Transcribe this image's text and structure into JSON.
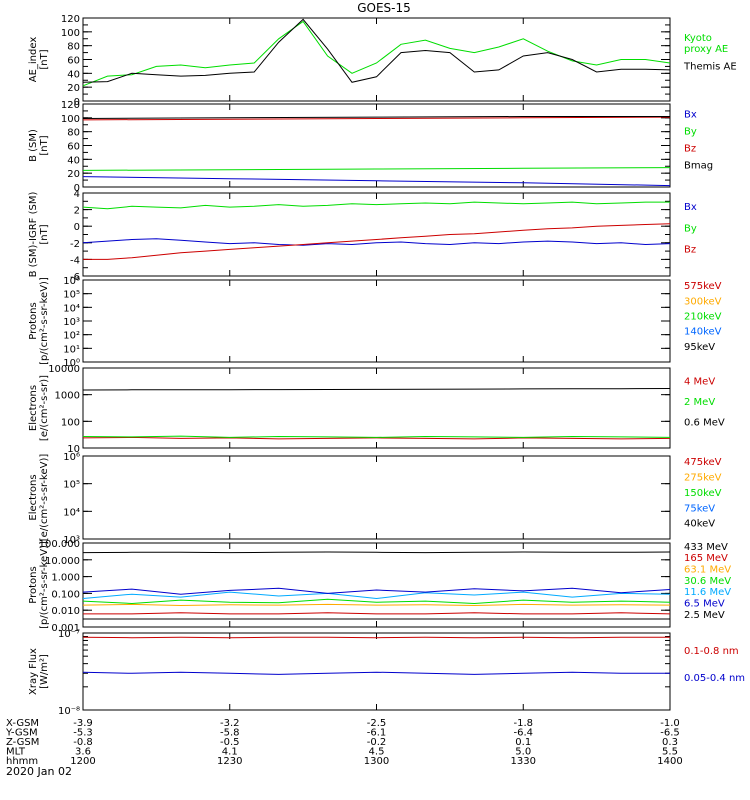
{
  "title": "GOES-15",
  "date": "2020 Jan 02",
  "chart_data": [
    {
      "type": "line",
      "id": "ae",
      "ylabel": [
        "AE_index",
        "[nT]"
      ],
      "ylim": [
        0,
        120
      ],
      "yscale": "linear",
      "ticks": [
        0,
        10,
        20,
        30,
        40,
        50,
        60,
        70,
        80,
        90,
        100,
        110,
        120
      ],
      "tick_labels": [
        "0",
        "20",
        "40",
        "60",
        "80",
        "100",
        "120"
      ],
      "tick_label_values": [
        0,
        20,
        40,
        60,
        80,
        100,
        120
      ],
      "x": [
        0,
        5,
        10,
        15,
        20,
        25,
        30,
        35,
        40,
        45,
        50,
        55,
        60,
        65,
        70,
        75,
        80,
        85,
        90,
        95,
        100,
        105,
        110,
        115,
        120
      ],
      "series": [
        {
          "name": "Kyoto proxy AE",
          "label_lines": [
            "Kyoto",
            "proxy AE"
          ],
          "color": "#00dd00",
          "values": [
            22,
            36,
            38,
            50,
            52,
            48,
            52,
            55,
            90,
            115,
            65,
            40,
            55,
            82,
            88,
            76,
            70,
            78,
            90,
            72,
            58,
            52,
            60,
            60,
            55
          ]
        },
        {
          "name": "Themis AE",
          "label_lines": [
            "Themis AE"
          ],
          "color": "#000000",
          "values": [
            27,
            28,
            40,
            38,
            36,
            37,
            40,
            42,
            85,
            118,
            75,
            27,
            35,
            70,
            73,
            70,
            42,
            45,
            65,
            70,
            60,
            42,
            46,
            46,
            45
          ]
        }
      ]
    },
    {
      "type": "line",
      "id": "bsm",
      "ylabel": [
        "B (SM)",
        "[nT]"
      ],
      "ylim": [
        0,
        120
      ],
      "yscale": "linear",
      "ticks": [
        0,
        10,
        20,
        30,
        40,
        50,
        60,
        70,
        80,
        90,
        100,
        110,
        120
      ],
      "tick_labels": [
        "0",
        "20",
        "40",
        "60",
        "80",
        "100",
        "120"
      ],
      "tick_label_values": [
        0,
        20,
        40,
        60,
        80,
        100,
        120
      ],
      "x": [
        0,
        30,
        60,
        90,
        120
      ],
      "series": [
        {
          "name": "Bx",
          "color": "#0000cc",
          "values": [
            15,
            12,
            9,
            6,
            2
          ]
        },
        {
          "name": "By",
          "color": "#00dd00",
          "values": [
            24,
            25,
            26,
            27,
            28
          ]
        },
        {
          "name": "Bz",
          "color": "#cc0000",
          "values": [
            97,
            98,
            99,
            100,
            101
          ]
        },
        {
          "name": "Bmag",
          "color": "#000000",
          "values": [
            99,
            100,
            101,
            102,
            102
          ]
        }
      ]
    },
    {
      "type": "line",
      "id": "bigrf",
      "ylabel": [
        "B (SM)-IGRF (SM)",
        "[nT]"
      ],
      "ylim": [
        -6,
        4
      ],
      "yscale": "linear",
      "ticks": [
        -6,
        -5,
        -4,
        -3,
        -2,
        -1,
        0,
        1,
        2,
        3,
        4
      ],
      "tick_labels": [
        "-6",
        "-4",
        "-2",
        "0",
        "2",
        "4"
      ],
      "tick_label_values": [
        -6,
        -4,
        -2,
        0,
        2,
        4
      ],
      "x": [
        0,
        5,
        10,
        15,
        20,
        25,
        30,
        35,
        40,
        45,
        50,
        55,
        60,
        65,
        70,
        75,
        80,
        85,
        90,
        95,
        100,
        105,
        110,
        115,
        120
      ],
      "series": [
        {
          "name": "Bx",
          "color": "#0000cc",
          "values": [
            -2.0,
            -1.8,
            -1.6,
            -1.5,
            -1.7,
            -1.9,
            -2.1,
            -2.0,
            -2.2,
            -2.3,
            -2.1,
            -2.2,
            -2.0,
            -1.9,
            -2.1,
            -2.2,
            -2.0,
            -2.1,
            -1.9,
            -1.8,
            -1.9,
            -2.1,
            -2.0,
            -2.2,
            -2.1
          ]
        },
        {
          "name": "By",
          "color": "#00dd00",
          "values": [
            2.3,
            2.1,
            2.4,
            2.3,
            2.2,
            2.5,
            2.3,
            2.4,
            2.6,
            2.4,
            2.5,
            2.7,
            2.6,
            2.7,
            2.8,
            2.7,
            2.9,
            2.8,
            2.7,
            2.8,
            2.9,
            2.7,
            2.8,
            2.9,
            2.9
          ]
        },
        {
          "name": "Bz",
          "color": "#cc0000",
          "values": [
            -4.0,
            -4.0,
            -3.8,
            -3.5,
            -3.2,
            -3.0,
            -2.8,
            -2.6,
            -2.4,
            -2.2,
            -2.0,
            -1.8,
            -1.6,
            -1.4,
            -1.2,
            -1.0,
            -0.9,
            -0.7,
            -0.5,
            -0.3,
            -0.2,
            0.0,
            0.1,
            0.2,
            0.3
          ]
        }
      ]
    },
    {
      "type": "line",
      "id": "protons-epead",
      "ylabel": [
        "Protons",
        "[p/(cm²-s-sr-keV)]"
      ],
      "ylim": [
        1,
        1000000
      ],
      "yscale": "log",
      "ticks": [
        1,
        10,
        100,
        1000,
        10000,
        100000,
        1000000
      ],
      "tick_labels": [
        "10⁰",
        "10¹",
        "10²",
        "10³",
        "10⁴",
        "10⁵",
        "10⁶"
      ],
      "tick_label_values": [
        1,
        10,
        100,
        1000,
        10000,
        100000,
        1000000
      ],
      "series": [
        {
          "name": "575keV",
          "color": "#cc0000",
          "values": []
        },
        {
          "name": "300keV",
          "color": "#ffaa00",
          "values": []
        },
        {
          "name": "210keV",
          "color": "#00dd00",
          "values": []
        },
        {
          "name": "140keV",
          "color": "#0066ff",
          "values": []
        },
        {
          "name": "95keV",
          "color": "#000000",
          "values": []
        }
      ]
    },
    {
      "type": "line",
      "id": "electrons-mev",
      "ylabel": [
        "Electrons",
        "[e/(cm²-s-sr)]"
      ],
      "ylim": [
        10,
        10000
      ],
      "yscale": "log",
      "ticks": [
        10,
        100,
        1000,
        10000
      ],
      "tick_labels": [
        "10",
        "100",
        "1000",
        "10000"
      ],
      "tick_label_values": [
        10,
        100,
        1000,
        10000
      ],
      "x": [
        0,
        10,
        20,
        30,
        40,
        50,
        60,
        70,
        80,
        90,
        100,
        110,
        120
      ],
      "series": [
        {
          "name": "4 MeV",
          "color": "#cc0000",
          "values": [
            24,
            25,
            23,
            24,
            22,
            23,
            24,
            23,
            22,
            24,
            23,
            22,
            23
          ]
        },
        {
          "name": "2 MeV",
          "color": "#00dd00",
          "values": [
            27,
            26,
            28,
            25,
            27,
            26,
            25,
            27,
            26,
            25,
            27,
            26,
            25
          ]
        },
        {
          "name": "0.6 MeV",
          "color": "#000000",
          "values": [
            1500,
            1520,
            1540,
            1530,
            1550,
            1560,
            1580,
            1600,
            1620,
            1640,
            1660,
            1680,
            1700
          ]
        }
      ]
    },
    {
      "type": "line",
      "id": "electrons-kev",
      "ylabel": [
        "Electrons",
        "[e/(cm²-s-sr-keV)]"
      ],
      "ylim": [
        1000,
        1000000
      ],
      "yscale": "log",
      "ticks": [
        1000,
        10000,
        100000,
        1000000
      ],
      "tick_labels": [
        "10³",
        "10⁴",
        "10⁵",
        "10⁶"
      ],
      "tick_label_values": [
        1000,
        10000,
        100000,
        1000000
      ],
      "series": [
        {
          "name": "475keV",
          "color": "#cc0000",
          "values": []
        },
        {
          "name": "275keV",
          "color": "#ffaa00",
          "values": []
        },
        {
          "name": "150keV",
          "color": "#00dd00",
          "values": []
        },
        {
          "name": "75keV",
          "color": "#0066ff",
          "values": []
        },
        {
          "name": "40keV",
          "color": "#000000",
          "values": []
        }
      ]
    },
    {
      "type": "line",
      "id": "protons-mev",
      "ylabel": [
        "Protons",
        "[p/(cm²-s-sr-keV)]"
      ],
      "ylim": [
        0.001,
        100
      ],
      "yscale": "log",
      "ticks": [
        0.001,
        0.01,
        0.1,
        1,
        10,
        100
      ],
      "tick_labels": [
        "0.001",
        "0.010",
        "0.100",
        "1.000",
        "10.000",
        "100.000"
      ],
      "tick_label_values": [
        0.001,
        0.01,
        0.1,
        1,
        10,
        100
      ],
      "x": [
        0,
        10,
        20,
        30,
        40,
        50,
        60,
        70,
        80,
        90,
        100,
        110,
        120
      ],
      "series": [
        {
          "name": "433 MeV",
          "color": "#000000",
          "values": [
            27,
            28,
            28,
            27,
            28,
            29,
            28,
            27,
            28,
            29,
            28,
            28,
            29
          ]
        },
        {
          "name": "165 MeV",
          "color": "#cc0000",
          "values": [
            0.006,
            0.006,
            0.007,
            0.006,
            0.006,
            0.007,
            0.006,
            0.006,
            0.007,
            0.006,
            0.006,
            0.007,
            0.006
          ]
        },
        {
          "name": "63.1 MeV",
          "color": "#ffaa00",
          "values": [
            0.02,
            0.022,
            0.019,
            0.021,
            0.02,
            0.022,
            0.02,
            0.021,
            0.019,
            0.022,
            0.02,
            0.021,
            0.02
          ]
        },
        {
          "name": "30.6 MeV",
          "color": "#00dd00",
          "values": [
            0.035,
            0.025,
            0.04,
            0.03,
            0.028,
            0.045,
            0.03,
            0.035,
            0.025,
            0.04,
            0.03,
            0.035,
            0.03
          ]
        },
        {
          "name": "11.6 MeV",
          "color": "#00aaff",
          "values": [
            0.05,
            0.09,
            0.06,
            0.12,
            0.07,
            0.1,
            0.05,
            0.11,
            0.08,
            0.12,
            0.06,
            0.1,
            0.09
          ]
        },
        {
          "name": "6.5 MeV",
          "color": "#0000cc",
          "values": [
            0.12,
            0.18,
            0.09,
            0.15,
            0.2,
            0.1,
            0.16,
            0.12,
            0.19,
            0.14,
            0.2,
            0.11,
            0.17
          ]
        },
        {
          "name": "2.5 MeV",
          "color": "#000000",
          "values": [
            0.003,
            0.003,
            0.003,
            0.003,
            0.003,
            0.003,
            0.003,
            0.003,
            0.003,
            0.003,
            0.003,
            0.003,
            0.003
          ]
        }
      ]
    },
    {
      "type": "line",
      "id": "xray",
      "ylabel": [
        "Xray Flux",
        "[W/m²]"
      ],
      "ylim": [
        1e-08,
        1e-07
      ],
      "yscale": "log",
      "ticks": [
        1e-08,
        2e-08,
        3e-08,
        4e-08,
        5e-08,
        6e-08,
        7e-08,
        8e-08,
        9e-08,
        1e-07
      ],
      "tick_labels": [
        "10⁻⁸",
        "10⁻⁷"
      ],
      "tick_label_values": [
        1e-08,
        1e-07
      ],
      "x": [
        0,
        10,
        20,
        30,
        40,
        50,
        60,
        70,
        80,
        90,
        100,
        110,
        120
      ],
      "series": [
        {
          "name": "0.1-0.8 nm",
          "color": "#cc0000",
          "values": [
            8.8e-08,
            8.7e-08,
            8.8e-08,
            8.7e-08,
            8.8e-08,
            8.8e-08,
            8.7e-08,
            8.8e-08,
            8.7e-08,
            8.8e-08,
            8.7e-08,
            8.8e-08,
            8.8e-08
          ]
        },
        {
          "name": "0.05-0.4 nm",
          "color": "#0000cc",
          "values": [
            3.1e-08,
            3e-08,
            3.1e-08,
            3e-08,
            2.9e-08,
            3e-08,
            3.1e-08,
            3e-08,
            2.9e-08,
            3e-08,
            3.1e-08,
            3e-08,
            3e-08
          ]
        }
      ]
    }
  ],
  "x_axis": {
    "range_minutes": [
      0,
      120
    ],
    "tick_minutes": [
      0,
      30,
      60,
      90,
      120
    ],
    "rows": [
      {
        "name": "X-GSM",
        "values": [
          "-3.9",
          "-3.2",
          "-2.5",
          "-1.8",
          "-1.0"
        ]
      },
      {
        "name": "Y-GSM",
        "values": [
          "-5.3",
          "-5.8",
          "-6.1",
          "-6.4",
          "-6.5"
        ]
      },
      {
        "name": "Z-GSM",
        "values": [
          "-0.8",
          "-0.5",
          "-0.2",
          "0.1",
          "0.3"
        ]
      },
      {
        "name": "MLT",
        "values": [
          "3.6",
          "4.1",
          "4.5",
          "5.0",
          "5.5"
        ]
      },
      {
        "name": "hhmm",
        "values": [
          "1200",
          "1230",
          "1300",
          "1330",
          "1400"
        ]
      }
    ]
  }
}
